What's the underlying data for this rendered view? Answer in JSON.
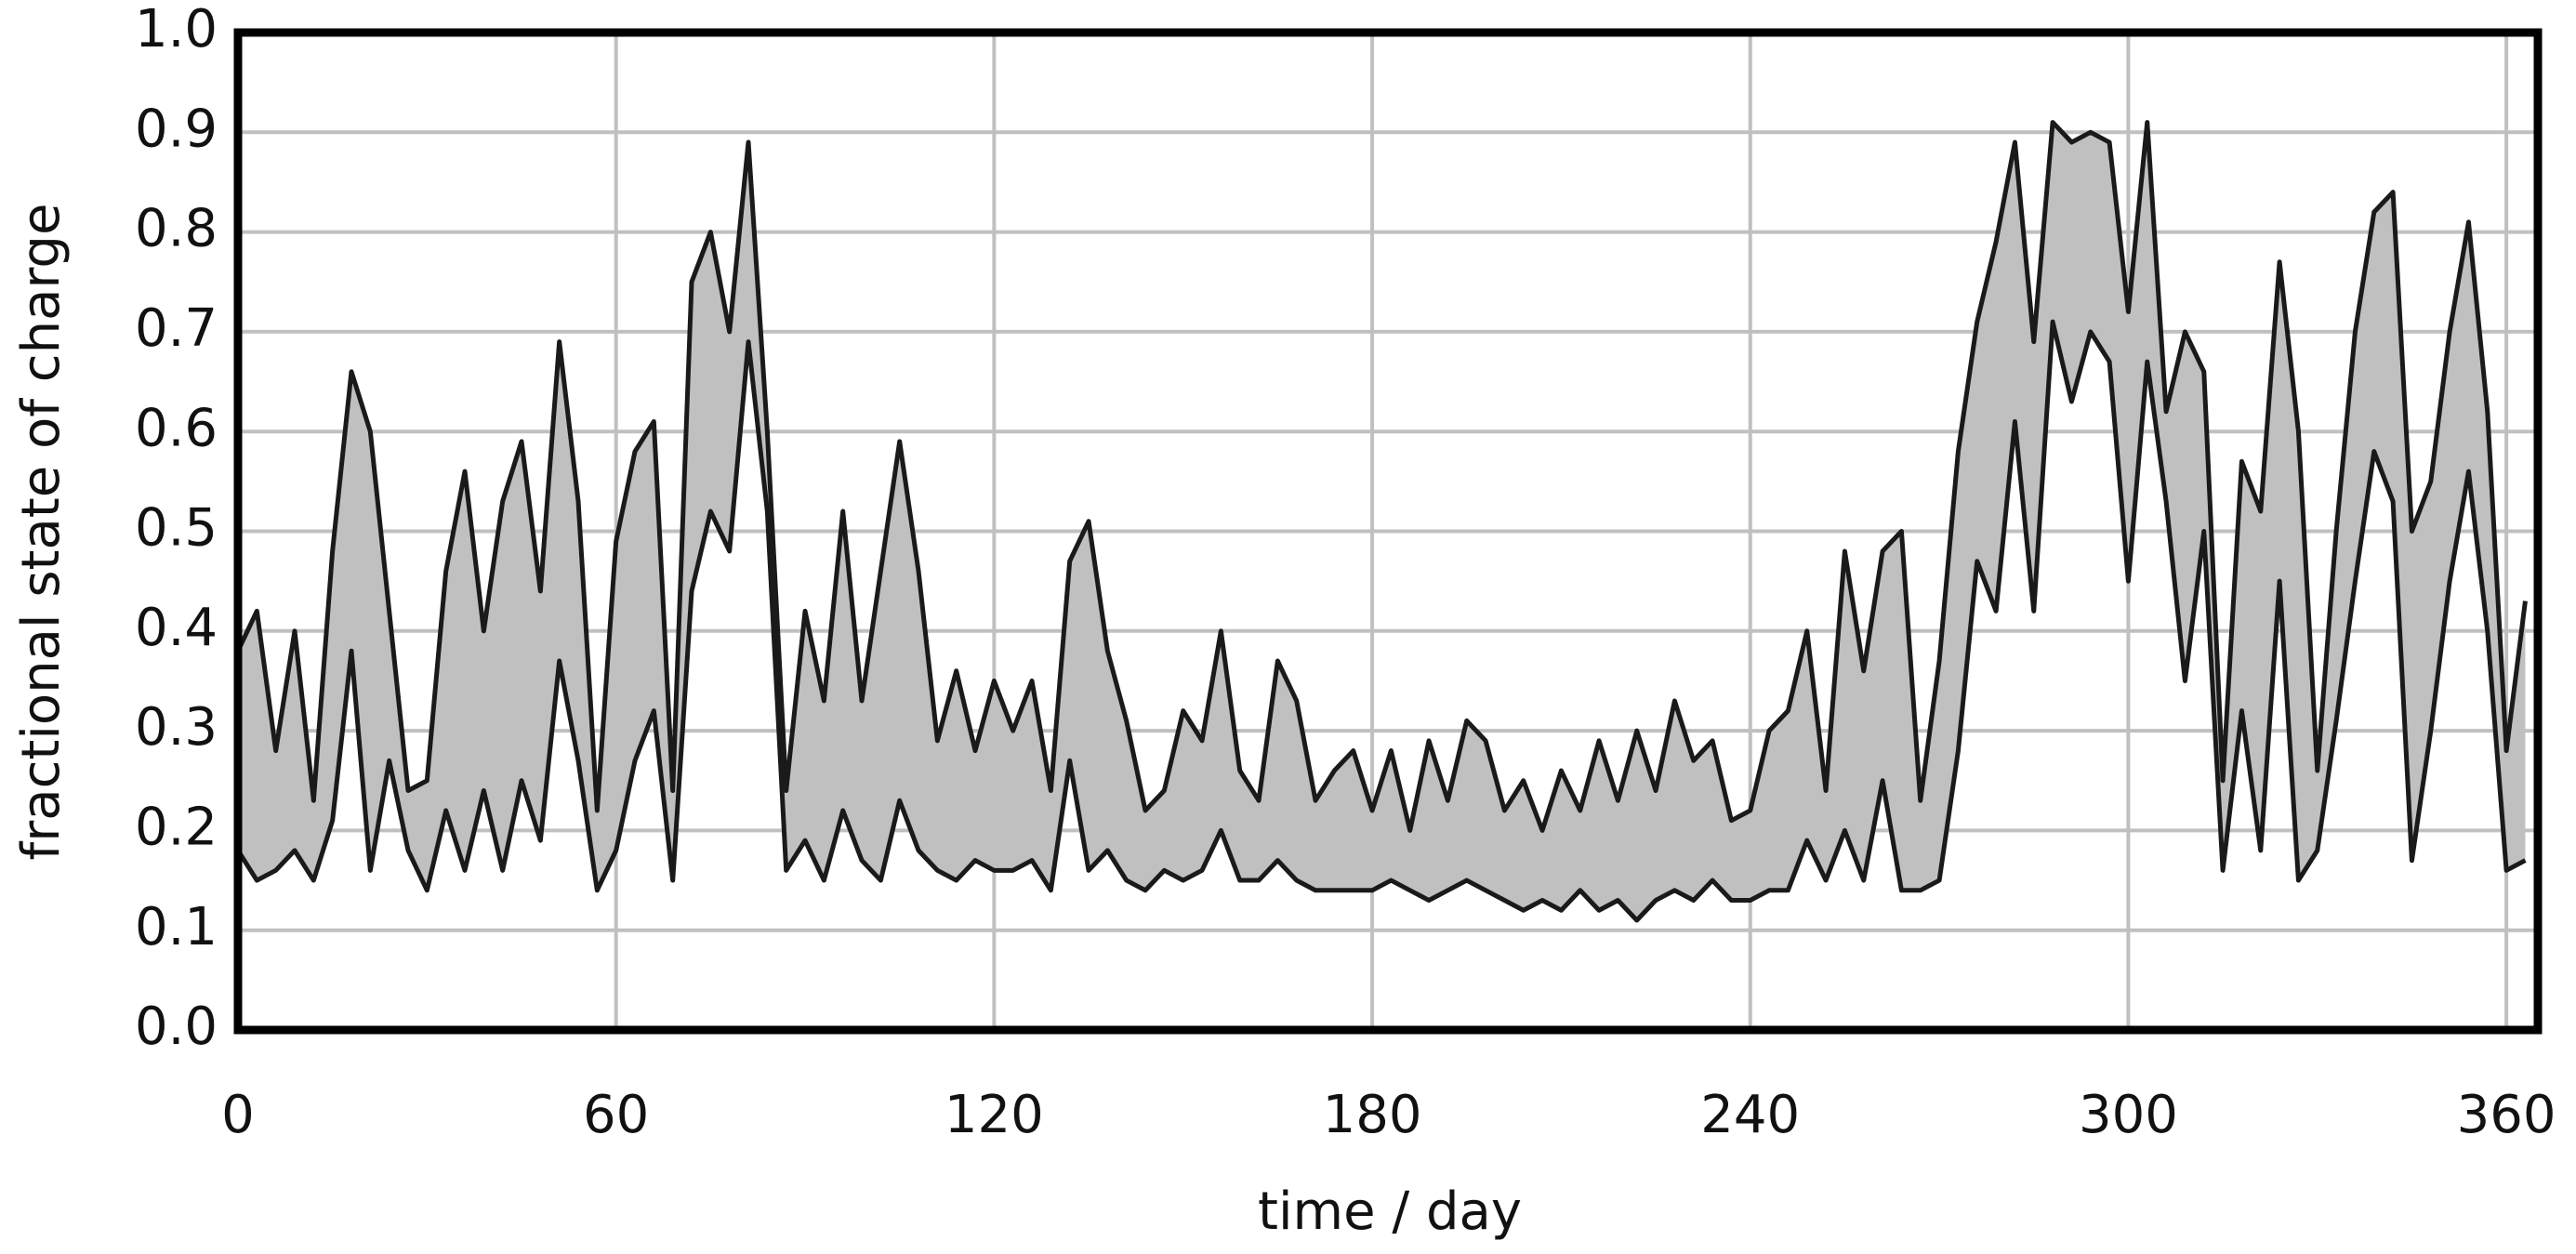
{
  "chart_data": {
    "type": "band",
    "xlabel": "time /  day",
    "ylabel": "fractional state of charge",
    "x": [
      0,
      3,
      6,
      9,
      12,
      15,
      18,
      21,
      24,
      27,
      30,
      33,
      36,
      39,
      42,
      45,
      48,
      51,
      54,
      57,
      60,
      63,
      66,
      69,
      72,
      75,
      78,
      81,
      84,
      87,
      90,
      93,
      96,
      99,
      102,
      105,
      108,
      111,
      114,
      117,
      120,
      123,
      126,
      129,
      132,
      135,
      138,
      141,
      144,
      147,
      150,
      153,
      156,
      159,
      162,
      165,
      168,
      171,
      174,
      177,
      180,
      183,
      186,
      189,
      192,
      195,
      198,
      201,
      204,
      207,
      210,
      213,
      216,
      219,
      222,
      225,
      228,
      231,
      234,
      237,
      240,
      243,
      246,
      249,
      252,
      255,
      258,
      261,
      264,
      267,
      270,
      273,
      276,
      279,
      282,
      285,
      288,
      291,
      294,
      297,
      300,
      303,
      306,
      309,
      312,
      315,
      318,
      321,
      324,
      327,
      330,
      333,
      336,
      339,
      342,
      345,
      348,
      351,
      354,
      357,
      360,
      363
    ],
    "series": [
      {
        "color": "#1a1a1a",
        "values": [
          0.38,
          0.42,
          0.28,
          0.4,
          0.23,
          0.48,
          0.66,
          0.6,
          0.42,
          0.24,
          0.25,
          0.46,
          0.56,
          0.4,
          0.53,
          0.59,
          0.44,
          0.69,
          0.53,
          0.22,
          0.49,
          0.58,
          0.61,
          0.24,
          0.75,
          0.8,
          0.7,
          0.89,
          0.6,
          0.24,
          0.42,
          0.33,
          0.52,
          0.33,
          0.46,
          0.59,
          0.46,
          0.29,
          0.36,
          0.28,
          0.35,
          0.3,
          0.35,
          0.24,
          0.47,
          0.51,
          0.38,
          0.31,
          0.22,
          0.24,
          0.32,
          0.29,
          0.4,
          0.26,
          0.23,
          0.37,
          0.33,
          0.23,
          0.26,
          0.28,
          0.22,
          0.28,
          0.2,
          0.29,
          0.23,
          0.31,
          0.29,
          0.22,
          0.25,
          0.2,
          0.26,
          0.22,
          0.29,
          0.23,
          0.3,
          0.24,
          0.33,
          0.27,
          0.29,
          0.21,
          0.22,
          0.3,
          0.32,
          0.4,
          0.24,
          0.48,
          0.36,
          0.48,
          0.5,
          0.23,
          0.37,
          0.58,
          0.71,
          0.79,
          0.89,
          0.69,
          0.91,
          0.89,
          0.9,
          0.89,
          0.72,
          0.91,
          0.62,
          0.7,
          0.66,
          0.25,
          0.57,
          0.52,
          0.77,
          0.6,
          0.26,
          0.5,
          0.7,
          0.82,
          0.84,
          0.5,
          0.55,
          0.7,
          0.81,
          0.62,
          0.28,
          0.43
        ]
      },
      {
        "color": "#1a1a1a",
        "values": [
          0.18,
          0.15,
          0.16,
          0.18,
          0.15,
          0.21,
          0.38,
          0.16,
          0.27,
          0.18,
          0.14,
          0.22,
          0.16,
          0.24,
          0.16,
          0.25,
          0.19,
          0.37,
          0.27,
          0.14,
          0.18,
          0.27,
          0.32,
          0.15,
          0.44,
          0.52,
          0.48,
          0.69,
          0.52,
          0.16,
          0.19,
          0.15,
          0.22,
          0.17,
          0.15,
          0.23,
          0.18,
          0.16,
          0.15,
          0.17,
          0.16,
          0.16,
          0.17,
          0.14,
          0.27,
          0.16,
          0.18,
          0.15,
          0.14,
          0.16,
          0.15,
          0.16,
          0.2,
          0.15,
          0.15,
          0.17,
          0.15,
          0.14,
          0.14,
          0.14,
          0.14,
          0.15,
          0.14,
          0.13,
          0.14,
          0.15,
          0.14,
          0.13,
          0.12,
          0.13,
          0.12,
          0.14,
          0.12,
          0.13,
          0.11,
          0.13,
          0.14,
          0.13,
          0.15,
          0.13,
          0.13,
          0.14,
          0.14,
          0.19,
          0.15,
          0.2,
          0.15,
          0.25,
          0.14,
          0.14,
          0.15,
          0.28,
          0.47,
          0.42,
          0.61,
          0.42,
          0.71,
          0.63,
          0.7,
          0.67,
          0.45,
          0.67,
          0.53,
          0.35,
          0.5,
          0.16,
          0.32,
          0.18,
          0.45,
          0.15,
          0.18,
          0.31,
          0.45,
          0.58,
          0.53,
          0.17,
          0.3,
          0.45,
          0.56,
          0.4,
          0.16,
          0.17
        ]
      }
    ],
    "fill": "#c0c0c0",
    "xlim": [
      0,
      365
    ],
    "xticks": [
      0,
      60,
      120,
      180,
      240,
      300,
      360
    ],
    "ylim": [
      0,
      1
    ],
    "yticks": [
      {
        "value": 0,
        "label": "0.0"
      },
      0.1,
      0.2,
      0.3,
      0.4,
      0.5,
      0.6,
      0.7,
      0.8,
      0.9,
      {
        "value": 1,
        "label": "1.0"
      }
    ],
    "grid": true
  }
}
